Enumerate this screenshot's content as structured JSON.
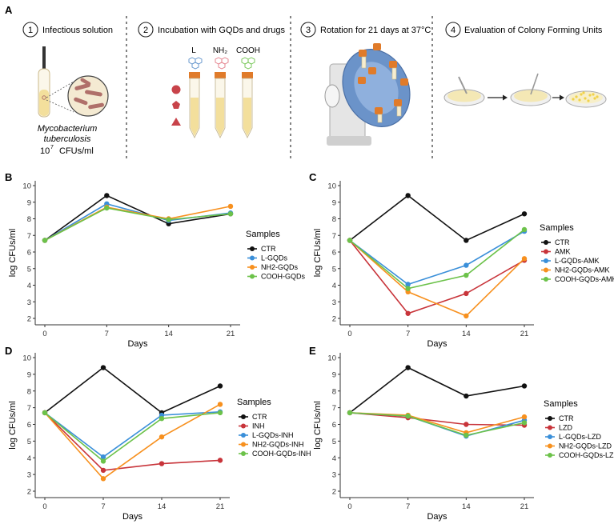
{
  "panel_a": {
    "letter": "A",
    "steps": [
      {
        "number": "1",
        "title": "Infectious solution",
        "organism_line1": "Mycobacterium",
        "organism_line2": "tuberculosis",
        "concentration_base": "10",
        "concentration_exp": "7",
        "concentration_unit": "CFUs/ml"
      },
      {
        "number": "2",
        "title": "Incubation with GQDs and drugs",
        "labels": [
          "L",
          "NH₂",
          "COOH"
        ]
      },
      {
        "number": "3",
        "title": "Rotation for 21 days at 37°C"
      },
      {
        "number": "4",
        "title": "Evaluation of Colony Forming Units"
      }
    ],
    "colors": {
      "tube_cap": "#e07b2a",
      "tube_liquid": "#f3df9c",
      "shape_red": "#c8434a",
      "bacteria": "#b0706a",
      "rotator": "#6b93c9",
      "rotator_base": "#d9d9d9",
      "dish_medium": "#f4e8b5",
      "colonies": "#f0d24a"
    }
  },
  "chart_data": [
    {
      "panel": "B",
      "type": "line",
      "x": [
        0,
        7,
        14,
        21
      ],
      "xlabel": "Days",
      "ylabel": "log CFUs/ml",
      "ylim": [
        2,
        10
      ],
      "yticks": [
        2,
        3,
        4,
        5,
        6,
        7,
        8,
        9,
        10
      ],
      "legend_title": "Samples",
      "series": [
        {
          "name": "CTR",
          "color": "#111111",
          "values": [
            6.7,
            9.4,
            7.7,
            8.3
          ]
        },
        {
          "name": "L-GQDs",
          "color": "#3a8fd9",
          "values": [
            6.7,
            8.9,
            7.9,
            8.35
          ]
        },
        {
          "name": "NH2-GQDs",
          "color": "#f7901e",
          "values": [
            6.7,
            8.7,
            8.0,
            8.75
          ]
        },
        {
          "name": "COOH-GQDs",
          "color": "#6cc24a",
          "values": [
            6.7,
            8.65,
            7.95,
            8.3
          ]
        }
      ]
    },
    {
      "panel": "C",
      "type": "line",
      "x": [
        0,
        7,
        14,
        21
      ],
      "xlabel": "Days",
      "ylabel": "log CFUs/ml",
      "ylim": [
        2,
        10
      ],
      "yticks": [
        2,
        3,
        4,
        5,
        6,
        7,
        8,
        9,
        10
      ],
      "legend_title": "Samples",
      "series": [
        {
          "name": "CTR",
          "color": "#111111",
          "values": [
            6.7,
            9.4,
            6.7,
            8.3
          ]
        },
        {
          "name": "AMK",
          "color": "#c8343a",
          "values": [
            6.7,
            2.3,
            3.5,
            5.5
          ]
        },
        {
          "name": "L-GQDs-AMK",
          "color": "#3a8fd9",
          "values": [
            6.7,
            4.05,
            5.2,
            7.25
          ]
        },
        {
          "name": "NH2-GQDs-AMK",
          "color": "#f7901e",
          "values": [
            6.7,
            3.6,
            2.15,
            5.6
          ]
        },
        {
          "name": "COOH-GQDs-AMK",
          "color": "#6cc24a",
          "values": [
            6.7,
            3.8,
            4.6,
            7.35
          ]
        }
      ]
    },
    {
      "panel": "D",
      "type": "line",
      "x": [
        0,
        7,
        14,
        21
      ],
      "xlabel": "Days",
      "ylabel": "log CFUs/ml",
      "ylim": [
        2,
        10
      ],
      "yticks": [
        2,
        3,
        4,
        5,
        6,
        7,
        8,
        9,
        10
      ],
      "legend_title": "Samples",
      "series": [
        {
          "name": "CTR",
          "color": "#111111",
          "values": [
            6.7,
            9.4,
            6.7,
            8.3
          ]
        },
        {
          "name": "INH",
          "color": "#c8343a",
          "values": [
            6.7,
            3.25,
            3.65,
            3.85
          ]
        },
        {
          "name": "L-GQDs-INH",
          "color": "#3a8fd9",
          "values": [
            6.7,
            4.05,
            6.55,
            6.75
          ]
        },
        {
          "name": "NH2-GQDs-INH",
          "color": "#f7901e",
          "values": [
            6.7,
            2.75,
            5.25,
            7.2
          ]
        },
        {
          "name": "COOH-GQDs-INH",
          "color": "#6cc24a",
          "values": [
            6.7,
            3.8,
            6.35,
            6.7
          ]
        }
      ]
    },
    {
      "panel": "E",
      "type": "line",
      "x": [
        0,
        7,
        14,
        21
      ],
      "xlabel": "Days",
      "ylabel": "log CFUs/ml",
      "ylim": [
        2,
        10
      ],
      "yticks": [
        2,
        3,
        4,
        5,
        6,
        7,
        8,
        9,
        10
      ],
      "legend_title": "Samples",
      "series": [
        {
          "name": "CTR",
          "color": "#111111",
          "values": [
            6.7,
            9.4,
            7.7,
            8.3
          ]
        },
        {
          "name": "LZD",
          "color": "#c8343a",
          "values": [
            6.7,
            6.4,
            6.0,
            5.95
          ]
        },
        {
          "name": "L-GQDs-LZD",
          "color": "#3a8fd9",
          "values": [
            6.7,
            6.5,
            5.3,
            6.25
          ]
        },
        {
          "name": "NH2-GQDs-LZD",
          "color": "#f7901e",
          "values": [
            6.7,
            6.55,
            5.5,
            6.45
          ]
        },
        {
          "name": "COOH-GQDs-LZD",
          "color": "#6cc24a",
          "values": [
            6.7,
            6.5,
            5.35,
            6.1
          ]
        }
      ]
    }
  ]
}
